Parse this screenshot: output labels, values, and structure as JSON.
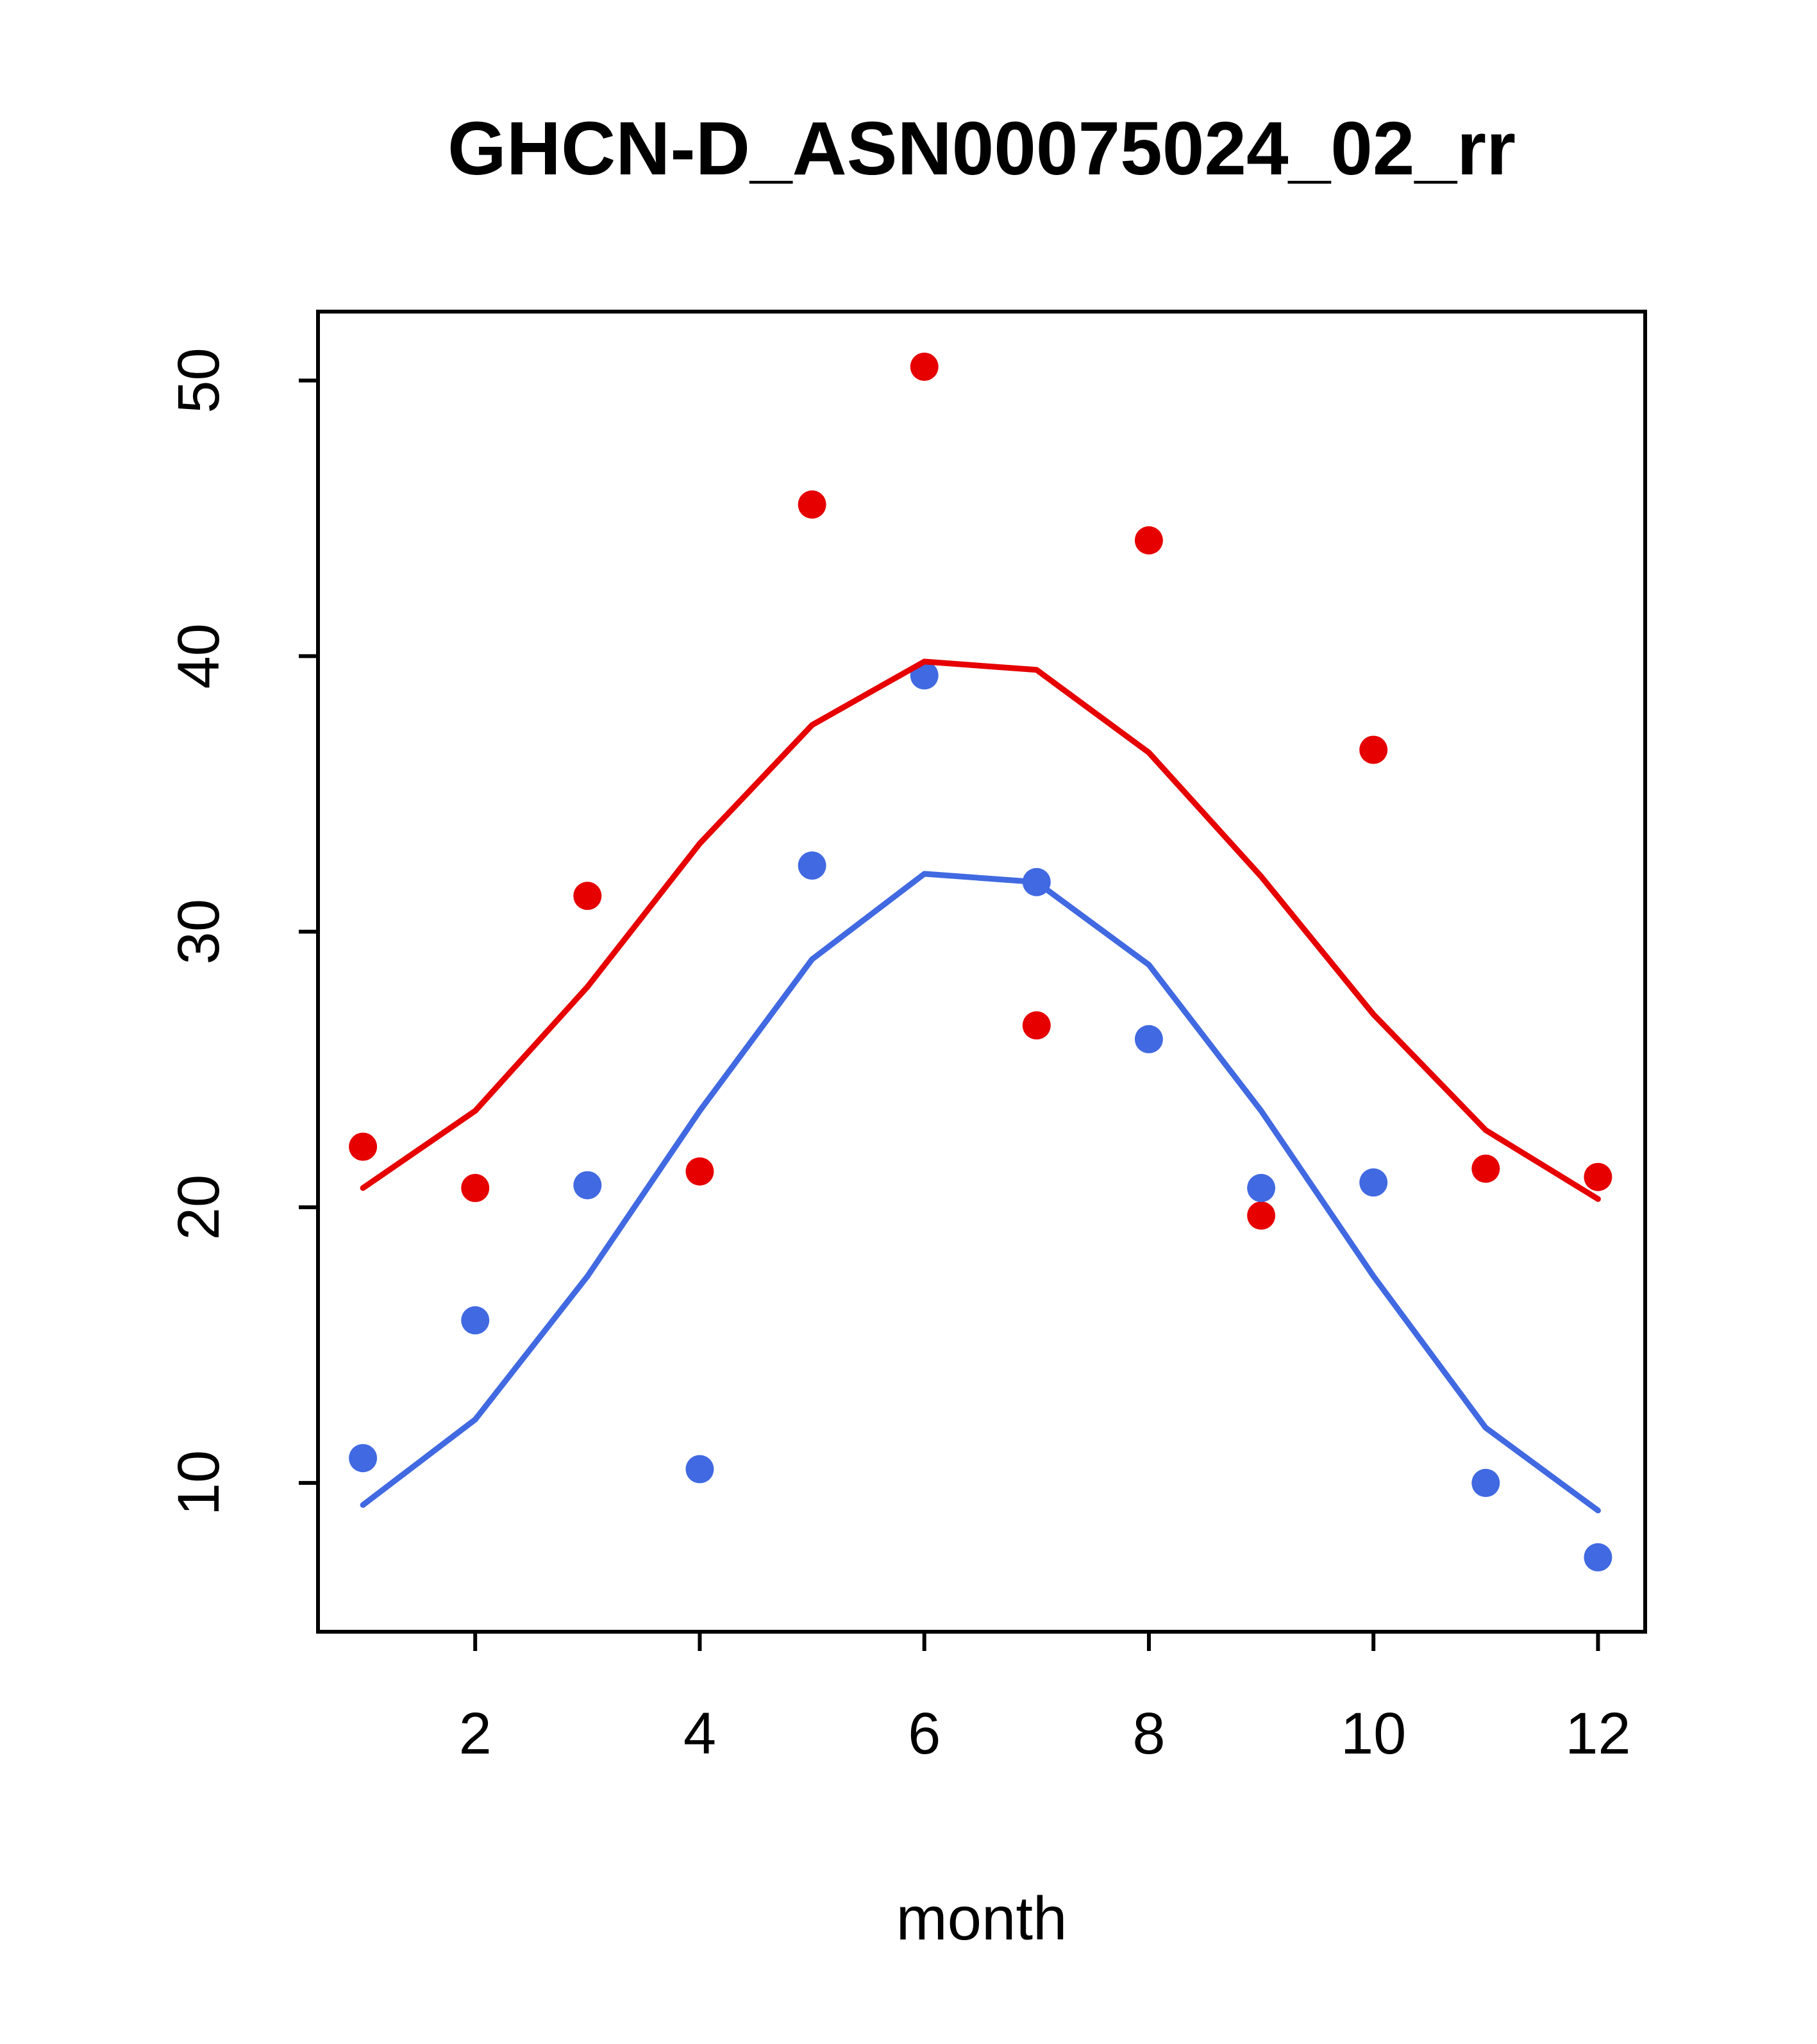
{
  "chart_data": {
    "type": "scatter",
    "title": "GHCN-D_ASN00075024_02_rr",
    "xlabel": "month",
    "ylabel": "",
    "x": [
      1,
      2,
      3,
      4,
      5,
      6,
      7,
      8,
      9,
      10,
      11,
      12
    ],
    "xticks": [
      2,
      4,
      6,
      8,
      10,
      12
    ],
    "yticks": [
      10,
      20,
      30,
      40,
      50
    ],
    "xlim": [
      0.6,
      12.42
    ],
    "ylim": [
      4.6,
      52.5
    ],
    "grid": false,
    "legend": "none",
    "colors": {
      "red": "#e60000",
      "blue": "#4169e1"
    },
    "series": [
      {
        "name": "red-points",
        "type": "points",
        "color": "#e60000",
        "values": [
          22.2,
          20.7,
          31.3,
          21.3,
          45.5,
          50.5,
          26.6,
          44.2,
          19.7,
          36.6,
          21.4,
          21.1
        ]
      },
      {
        "name": "blue-points",
        "type": "points",
        "color": "#4169e1",
        "values": [
          10.9,
          15.9,
          20.8,
          10.5,
          32.4,
          39.3,
          31.8,
          26.1,
          20.7,
          20.9,
          10.0,
          7.3
        ]
      },
      {
        "name": "red-line",
        "type": "line",
        "color": "#e60000",
        "values": [
          20.7,
          23.5,
          28.0,
          33.2,
          37.5,
          39.8,
          39.5,
          36.5,
          32.0,
          27.0,
          22.8,
          20.3
        ]
      },
      {
        "name": "blue-line",
        "type": "line",
        "color": "#4169e1",
        "values": [
          9.2,
          12.3,
          17.5,
          23.5,
          29.0,
          32.1,
          31.8,
          28.8,
          23.5,
          17.5,
          12.0,
          9.0
        ]
      }
    ]
  }
}
